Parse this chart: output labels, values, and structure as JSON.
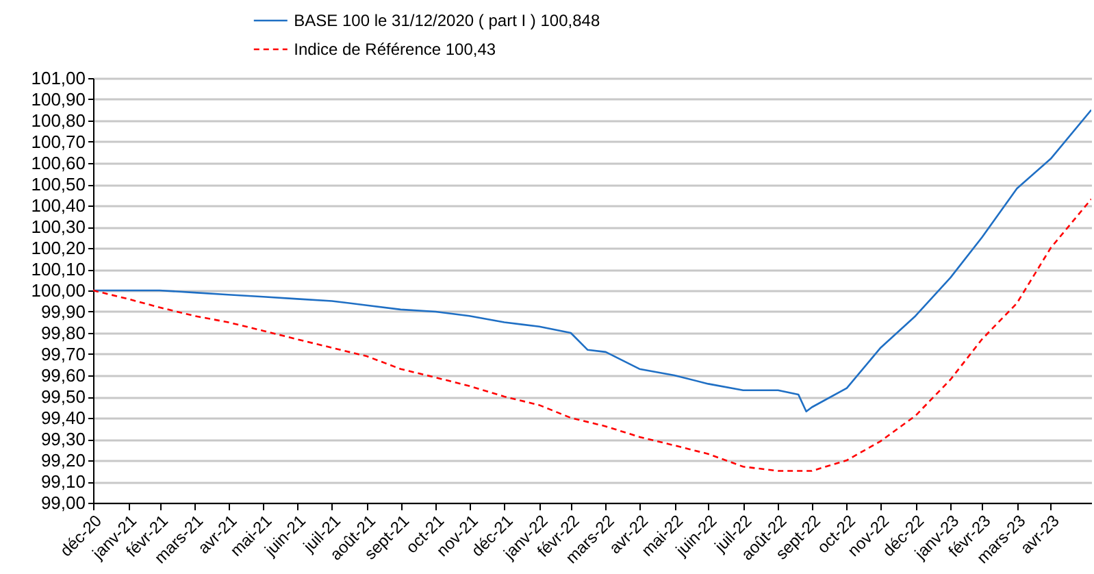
{
  "chart_data": {
    "type": "line",
    "legend": "top",
    "grid": "y",
    "xlim": [
      "2020-12-31",
      "2023-06-05"
    ],
    "xticks": [
      {
        "value": "2020-12-31",
        "label": "déc-20"
      },
      {
        "value": "2021-01-31",
        "label": "janv-21"
      },
      {
        "value": "2021-02-28",
        "label": "févr-21"
      },
      {
        "value": "2021-03-31",
        "label": "mars-21"
      },
      {
        "value": "2021-04-30",
        "label": "avr-21"
      },
      {
        "value": "2021-05-31",
        "label": "mai-21"
      },
      {
        "value": "2021-06-30",
        "label": "juin-21"
      },
      {
        "value": "2021-07-31",
        "label": "juil-21"
      },
      {
        "value": "2021-08-31",
        "label": "août-21"
      },
      {
        "value": "2021-09-30",
        "label": "sept-21"
      },
      {
        "value": "2021-10-31",
        "label": "oct-21"
      },
      {
        "value": "2021-11-30",
        "label": "nov-21"
      },
      {
        "value": "2021-12-31",
        "label": "déc-21"
      },
      {
        "value": "2022-01-31",
        "label": "janv-22"
      },
      {
        "value": "2022-02-28",
        "label": "févr-22"
      },
      {
        "value": "2022-03-31",
        "label": "mars-22"
      },
      {
        "value": "2022-04-30",
        "label": "avr-22"
      },
      {
        "value": "2022-05-31",
        "label": "mai-22"
      },
      {
        "value": "2022-06-30",
        "label": "juin-22"
      },
      {
        "value": "2022-07-31",
        "label": "juil-22"
      },
      {
        "value": "2022-08-31",
        "label": "août-22"
      },
      {
        "value": "2022-09-30",
        "label": "sept-22"
      },
      {
        "value": "2022-10-31",
        "label": "oct-22"
      },
      {
        "value": "2022-11-30",
        "label": "nov-22"
      },
      {
        "value": "2022-12-31",
        "label": "déc-22"
      },
      {
        "value": "2023-01-31",
        "label": "janv-23"
      },
      {
        "value": "2023-02-28",
        "label": "févr-23"
      },
      {
        "value": "2023-03-31",
        "label": "mars-23"
      },
      {
        "value": "2023-04-30",
        "label": "avr-23"
      }
    ],
    "ylim": [
      99,
      101
    ],
    "yticks": [
      {
        "value": 99,
        "label": "99,00"
      },
      {
        "value": 99.1,
        "label": "99,10"
      },
      {
        "value": 99.2,
        "label": "99,20"
      },
      {
        "value": 99.3,
        "label": "99,30"
      },
      {
        "value": 99.4,
        "label": "99,40"
      },
      {
        "value": 99.5,
        "label": "99,50"
      },
      {
        "value": 99.6,
        "label": "99,60"
      },
      {
        "value": 99.7,
        "label": "99,70"
      },
      {
        "value": 99.8,
        "label": "99,80"
      },
      {
        "value": 99.9,
        "label": "99,90"
      },
      {
        "value": 100,
        "label": "100,00"
      },
      {
        "value": 100.1,
        "label": "100,10"
      },
      {
        "value": 100.2,
        "label": "100,20"
      },
      {
        "value": 100.3,
        "label": "100,30"
      },
      {
        "value": 100.4,
        "label": "100,40"
      },
      {
        "value": 100.5,
        "label": "100,50"
      },
      {
        "value": 100.6,
        "label": "100,60"
      },
      {
        "value": 100.7,
        "label": "100,70"
      },
      {
        "value": 100.8,
        "label": "100,80"
      },
      {
        "value": 100.9,
        "label": "100,90"
      },
      {
        "value": 101,
        "label": "101,00"
      }
    ],
    "series": [
      {
        "name": "BASE 100 le 31/12/2020 ( part I ) 100,848",
        "color": "#1f6fc4",
        "line_style": "solid",
        "x": [
          "2020-12-31",
          "2021-01-31",
          "2021-02-28",
          "2021-03-31",
          "2021-04-30",
          "2021-05-31",
          "2021-06-30",
          "2021-07-31",
          "2021-08-31",
          "2021-09-30",
          "2021-10-31",
          "2021-11-30",
          "2021-12-31",
          "2022-01-31",
          "2022-02-28",
          "2022-03-15",
          "2022-03-31",
          "2022-04-30",
          "2022-05-31",
          "2022-06-30",
          "2022-07-31",
          "2022-08-31",
          "2022-09-18",
          "2022-09-25",
          "2022-09-30",
          "2022-10-31",
          "2022-11-30",
          "2022-12-31",
          "2023-01-31",
          "2023-02-28",
          "2023-03-31",
          "2023-04-30",
          "2023-06-05"
        ],
        "values": [
          100.0,
          100.0,
          100.0,
          99.99,
          99.98,
          99.97,
          99.96,
          99.95,
          99.93,
          99.91,
          99.9,
          99.88,
          99.85,
          99.83,
          99.8,
          99.72,
          99.71,
          99.63,
          99.6,
          99.56,
          99.53,
          99.53,
          99.51,
          99.43,
          99.45,
          99.54,
          99.73,
          99.88,
          100.06,
          100.25,
          100.48,
          100.62,
          100.85
        ]
      },
      {
        "name": "Indice de Référence 100,43",
        "color": "#ff0000",
        "line_style": "dashed",
        "x": [
          "2020-12-31",
          "2021-01-31",
          "2021-02-28",
          "2021-03-31",
          "2021-04-30",
          "2021-05-31",
          "2021-06-30",
          "2021-07-31",
          "2021-08-31",
          "2021-09-30",
          "2021-10-31",
          "2021-11-30",
          "2021-12-31",
          "2022-01-31",
          "2022-02-28",
          "2022-03-31",
          "2022-04-30",
          "2022-05-31",
          "2022-06-30",
          "2022-07-31",
          "2022-08-31",
          "2022-09-30",
          "2022-10-31",
          "2022-11-30",
          "2022-12-31",
          "2023-01-31",
          "2023-02-28",
          "2023-03-31",
          "2023-04-30",
          "2023-06-05"
        ],
        "values": [
          100.0,
          99.96,
          99.92,
          99.88,
          99.85,
          99.81,
          99.77,
          99.73,
          99.69,
          99.63,
          99.59,
          99.55,
          99.5,
          99.46,
          99.4,
          99.36,
          99.31,
          99.27,
          99.23,
          99.17,
          99.15,
          99.15,
          99.2,
          99.29,
          99.41,
          99.58,
          99.77,
          99.94,
          100.2,
          100.43
        ]
      }
    ]
  }
}
